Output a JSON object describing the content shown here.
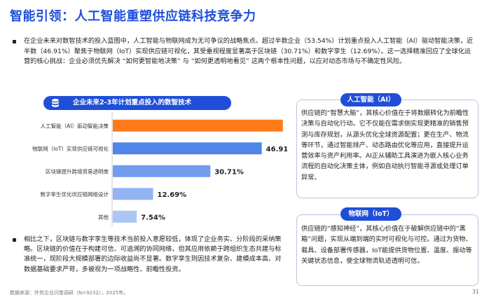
{
  "page": {
    "title": "智能引领：人工智能重塑供应链科技竞争力",
    "intro": "在企业未来对数智技术的投入蓝图中，人工智能与物联网成为无可争议的战略焦点。超过半数企业（53.54%）计划重点投入人工智能（AI）驱动智能决策，近半数（46.91%）聚焦于物联网（IoT）实现供应链可视化，其受重视程度显著高于区块链（30.71%）和数字孪生（12.69%）。这一选择精准回应了全球化运营的核心挑战：企业必须优先解决 “如何更智能地决策” 与 “如何更透明地看见” 这两个根本性问题，以应对动态市场与不确定性风险。",
    "outro": "相比之下，区块链与数字孪生等技术当前投入意愿较低，体现了企业务实、分阶段的采纳策略。区块链的价值在于构建可信、可追溯的协同网络，但其应用依赖于跨组织生态共建与标准统一，现阶段大规模部署的边际收益尚不显著。数字孪生则因技术复杂、建模成本高、对数据基础要求严苛，多被视为一项战略性、前瞻性投资。",
    "footer": "数据来源：外贸企业问卷调研（N=9232），2025年。",
    "page_number": "31"
  },
  "chart_header": {
    "title": "企业未来2-3年计划重点投入的数智技术",
    "icon": "database-icon"
  },
  "cards": {
    "ai": {
      "title": "人工智能（AI）",
      "text": "供应链的“智慧大脑”，其核心价值在于将数据转化为前瞻性决策与自动化行动。它不仅能在需求侧实现更精准的销售预测与库存规划，从源头优化全球资源配置；更在生产、物流等环节，通过智能排产、动态路由优化等应用，直接提升运营效率与资产利用率。AI正从辅助工具演进为嵌入核心业务流程的自动化决策主体，例如自动执行智能寻源或处理订单异常。"
    },
    "iot": {
      "title": "物联网（IoT）",
      "text": "供应链的“感知神经”，其核心价值在于破解供应链中的“黑箱”问题，实现从端到端的实时可视化与可控。通过为货物、载具、设备部署传感器，IoT能提供货物位置、温度、振动等关键状态信息，使全球物流轨迹透明可信。"
    }
  },
  "colors": {
    "accent": "#1f4fd8",
    "bar_top": "#ff7a1a",
    "bar_rest": "#2f6fe6"
  },
  "chart_data": {
    "type": "bar",
    "orientation": "horizontal",
    "title": "企业未来2-3年计划重点投入的数智技术",
    "categories": [
      "人工智能（AI）驱动智能决策",
      "物联网（IoT）实现供应链可视化",
      "区块链提升跨境贸易透明度",
      "数字孪生优化供应链网络设计",
      "其他"
    ],
    "values": [
      53.54,
      46.91,
      30.71,
      12.69,
      7.54
    ],
    "value_labels": [
      "53.54%",
      "46.91%",
      "30.71%",
      "12.69%",
      "7.54%"
    ],
    "xlim": [
      0,
      60
    ],
    "unit": "%",
    "grid": false,
    "legend": "none"
  }
}
